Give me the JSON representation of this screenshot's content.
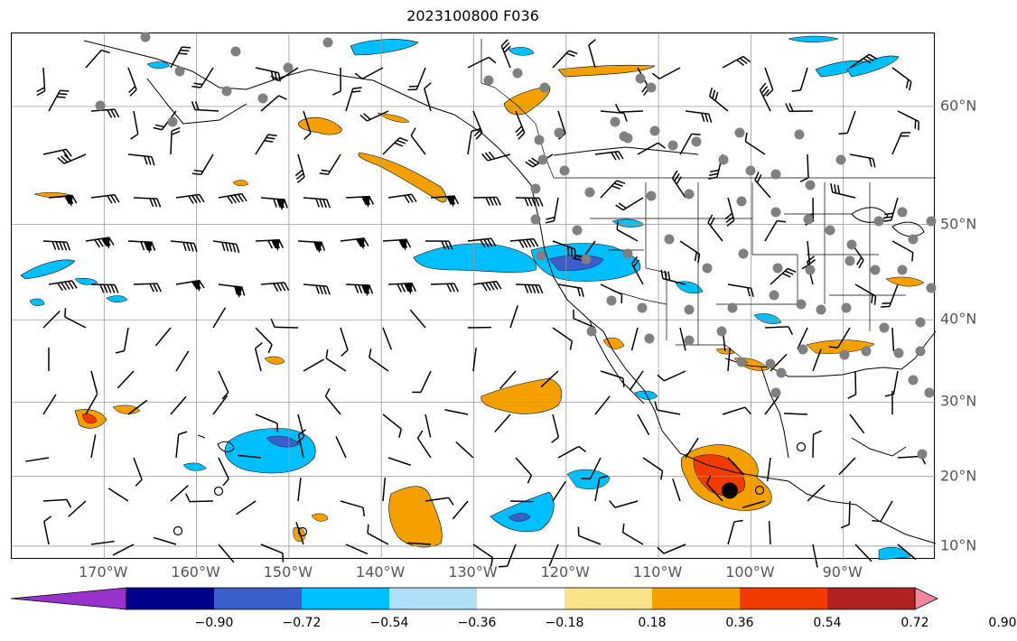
{
  "title": "2023100800 F036",
  "map": {
    "lon_ticks": [
      {
        "value": -170,
        "label": "170°W"
      },
      {
        "value": -160,
        "label": "160°W"
      },
      {
        "value": -150,
        "label": "150°W"
      },
      {
        "value": -140,
        "label": "140°W"
      },
      {
        "value": -130,
        "label": "130°W"
      },
      {
        "value": -120,
        "label": "120°W"
      },
      {
        "value": -110,
        "label": "110°W"
      },
      {
        "value": -100,
        "label": "100°W"
      },
      {
        "value": -90,
        "label": "90°W"
      }
    ],
    "lat_ticks": [
      {
        "value": 60,
        "label": "60°N"
      },
      {
        "value": 50,
        "label": "50°N"
      },
      {
        "value": 40,
        "label": "40°N"
      },
      {
        "value": 30,
        "label": "30°N"
      },
      {
        "value": 20,
        "label": "20°N"
      },
      {
        "value": 10,
        "label": "10°N"
      }
    ],
    "lon_range": [
      -180,
      -80
    ],
    "lat_range": [
      8,
      65
    ],
    "gridlines": true,
    "field_positive_color": "#f4a000",
    "field_negative_color": "#00bfff",
    "station_color": "#808080",
    "storm_marker": {
      "lon": -102.3,
      "lat": 18.0,
      "color": "#000000"
    }
  },
  "colorbar": {
    "colors": [
      "#9932cc",
      "#00008b",
      "#3a5fcd",
      "#00bfff",
      "#b0e0f8",
      "#ffffff",
      "#f8e38b",
      "#f4a000",
      "#f03c00",
      "#b22222",
      "#f4869e"
    ],
    "tick_labels": [
      "−0.90",
      "−0.72",
      "−0.54",
      "−0.36",
      "−0.18",
      "0.18",
      "0.36",
      "0.54",
      "0.72",
      "0.90"
    ]
  }
}
